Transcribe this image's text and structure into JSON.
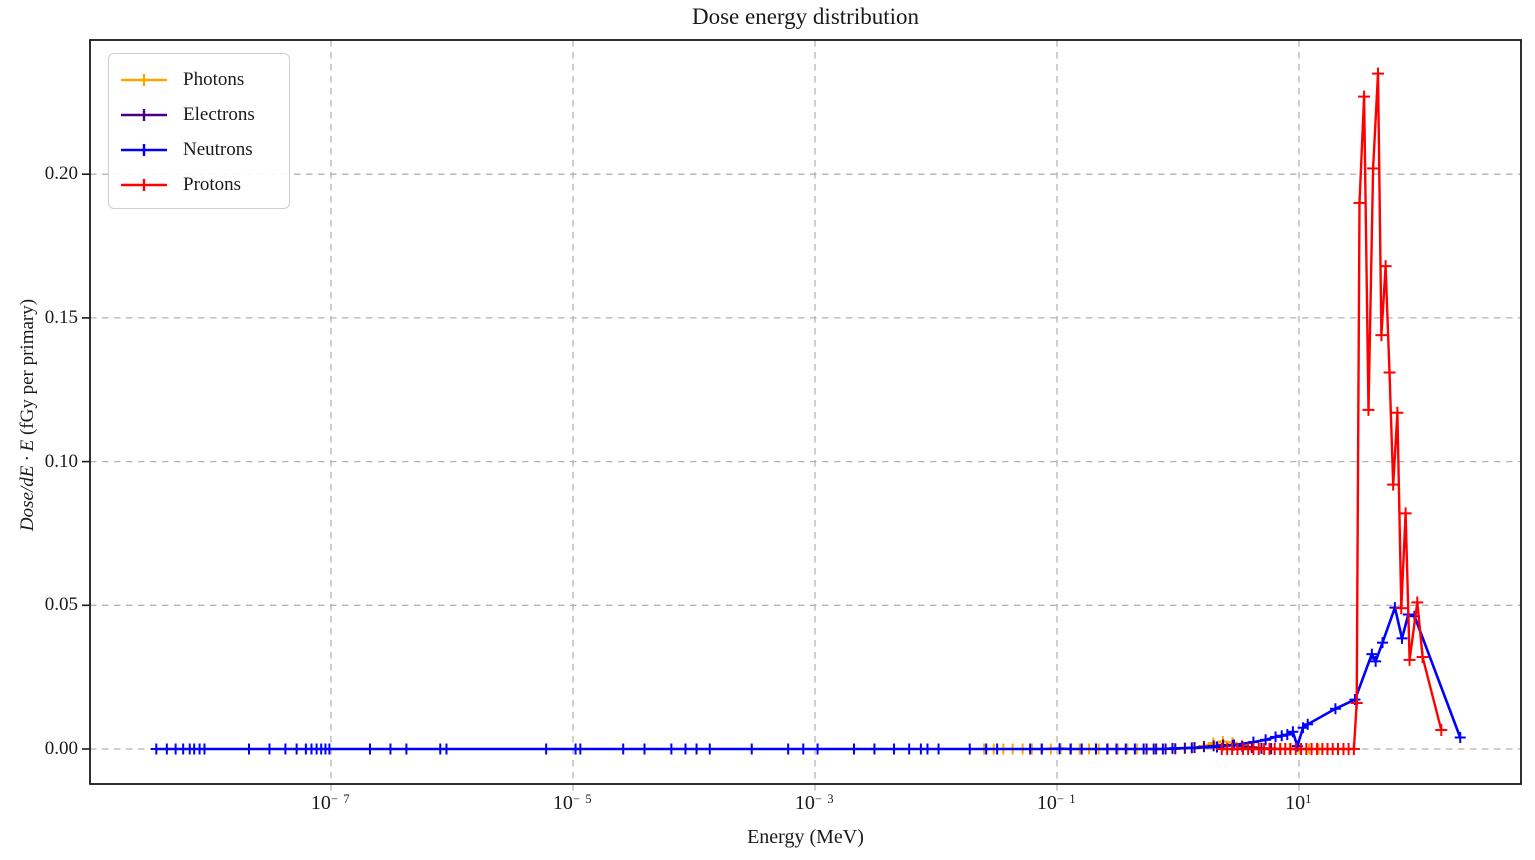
{
  "chart_data": {
    "type": "line",
    "title": "Dose energy distribution",
    "xlabel": "Energy (MeV)",
    "ylabel_math": "Dose/dE · E",
    "ylabel_unit": " (fGy per primary)",
    "x_scale": "log",
    "xlim": [
      1e-09,
      700
    ],
    "ylim": [
      -0.012,
      0.247
    ],
    "x_ticks": [
      {
        "base": "10",
        "exp": -7
      },
      {
        "base": "10",
        "exp": -5
      },
      {
        "base": "10",
        "exp": -3
      },
      {
        "base": "10",
        "exp": -1
      },
      {
        "base": "10",
        "exp": 1
      }
    ],
    "y_ticks": [
      0.0,
      0.05,
      0.1,
      0.15,
      0.2
    ],
    "grid": "dashed",
    "grid_color": "#b4b4b4",
    "legend_position": "upper-left",
    "series": [
      {
        "name": "Photons",
        "color": "#FFA500",
        "marker": "+",
        "points": [
          [
            0.025,
            0
          ],
          [
            0.03,
            0
          ],
          [
            0.036,
            0
          ],
          [
            0.043,
            0
          ],
          [
            0.052,
            0
          ],
          [
            0.062,
            0
          ],
          [
            0.074,
            0
          ],
          [
            0.089,
            0
          ],
          [
            0.107,
            0
          ],
          [
            0.128,
            0
          ],
          [
            0.154,
            0
          ],
          [
            0.184,
            0
          ],
          [
            0.221,
            0
          ],
          [
            0.265,
            0
          ],
          [
            0.318,
            0
          ],
          [
            0.381,
            0
          ],
          [
            0.457,
            0
          ],
          [
            0.548,
            0
          ],
          [
            0.658,
            0
          ],
          [
            0.789,
            0
          ],
          [
            0.946,
            0
          ],
          [
            1.14,
            0.0002
          ],
          [
            1.36,
            0.0005
          ],
          [
            1.63,
            0.001
          ],
          [
            1.96,
            0.0021
          ],
          [
            2.35,
            0.0026
          ],
          [
            2.82,
            0.0022
          ],
          [
            3.38,
            0.0013
          ],
          [
            4.06,
            0.0007
          ],
          [
            4.87,
            0.0004
          ],
          [
            5.84,
            0.0002
          ],
          [
            7.0,
            0.0001
          ],
          [
            8.4,
            0.0001
          ],
          [
            10.1,
            0
          ],
          [
            12.1,
            0
          ],
          [
            14.5,
            0
          ]
        ]
      },
      {
        "name": "Electrons",
        "color": "#4B0082",
        "marker": "+",
        "points": [
          [
            0.55,
            0
          ],
          [
            0.66,
            0
          ],
          [
            0.79,
            0
          ],
          [
            0.95,
            0.0001
          ],
          [
            1.14,
            0.0003
          ],
          [
            1.37,
            0.0005
          ],
          [
            1.64,
            0.0008
          ],
          [
            1.97,
            0.0011
          ],
          [
            2.36,
            0.0014
          ],
          [
            2.83,
            0.0013
          ],
          [
            3.4,
            0.0009
          ],
          [
            4.08,
            0.0005
          ],
          [
            4.9,
            0.0002
          ],
          [
            5.88,
            0.0001
          ]
        ]
      },
      {
        "name": "Neutrons",
        "color": "#0000FF",
        "marker": "+",
        "points": [
          [
            3.6e-09,
            0
          ],
          [
            4.4e-09,
            0
          ],
          [
            5.2e-09,
            0
          ],
          [
            6e-09,
            0
          ],
          [
            6.8e-09,
            0
          ],
          [
            7.4e-09,
            0
          ],
          [
            8.2e-09,
            0
          ],
          [
            9e-09,
            0
          ],
          [
            2.1e-08,
            0
          ],
          [
            3.1e-08,
            0
          ],
          [
            4.2e-08,
            0
          ],
          [
            5.2e-08,
            0
          ],
          [
            6.2e-08,
            0
          ],
          [
            6.9e-08,
            0
          ],
          [
            7.6e-08,
            0
          ],
          [
            8.3e-08,
            0
          ],
          [
            9e-08,
            0
          ],
          [
            9.7e-08,
            0
          ],
          [
            2.1e-07,
            0
          ],
          [
            3.1e-07,
            0
          ],
          [
            4.2e-07,
            0
          ],
          [
            8e-07,
            0
          ],
          [
            9e-07,
            0
          ],
          [
            6e-06,
            0
          ],
          [
            1.05e-05,
            0
          ],
          [
            1.15e-05,
            0
          ],
          [
            2.6e-05,
            0
          ],
          [
            3.9e-05,
            0
          ],
          [
            6.5e-05,
            0
          ],
          [
            8.5e-05,
            0
          ],
          [
            0.000105,
            0
          ],
          [
            0.000135,
            0
          ],
          [
            0.0003,
            0
          ],
          [
            0.0006,
            0
          ],
          [
            0.0008,
            0
          ],
          [
            0.00105,
            0
          ],
          [
            0.0021,
            0
          ],
          [
            0.0031,
            0
          ],
          [
            0.0045,
            0
          ],
          [
            0.006,
            0
          ],
          [
            0.0075,
            0
          ],
          [
            0.0085,
            0
          ],
          [
            0.0105,
            0
          ],
          [
            0.019,
            0
          ],
          [
            0.026,
            0
          ],
          [
            0.032,
            0
          ],
          [
            0.06,
            0
          ],
          [
            0.075,
            0
          ],
          [
            0.105,
            0.0001
          ],
          [
            0.13,
            0
          ],
          [
            0.16,
            0
          ],
          [
            0.21,
            0
          ],
          [
            0.26,
            0
          ],
          [
            0.31,
            0
          ],
          [
            0.37,
            0
          ],
          [
            0.44,
            0
          ],
          [
            0.52,
            0
          ],
          [
            0.63,
            0
          ],
          [
            0.75,
            0
          ],
          [
            0.9,
            0.0002
          ],
          [
            1.3,
            0.0004
          ],
          [
            2.1,
            0.0007
          ],
          [
            2.9,
            0.0014
          ],
          [
            4.2,
            0.0024
          ],
          [
            5.3,
            0.0032
          ],
          [
            6.4,
            0.0042
          ],
          [
            7.2,
            0.0046
          ],
          [
            8.0,
            0.005
          ],
          [
            8.9,
            0.006
          ],
          [
            9.7,
            0.001
          ],
          [
            10.8,
            0.0074
          ],
          [
            11.8,
            0.0086
          ],
          [
            20,
            0.014
          ],
          [
            29,
            0.0172
          ],
          [
            40,
            0.033
          ],
          [
            43,
            0.0305
          ],
          [
            49,
            0.037
          ],
          [
            62,
            0.0492
          ],
          [
            71,
            0.0385
          ],
          [
            80,
            0.0468
          ],
          [
            90,
            0.0462
          ],
          [
            215,
            0.004
          ]
        ]
      },
      {
        "name": "Protons",
        "color": "#FF0000",
        "marker": "+",
        "points": [
          [
            2.3,
            0
          ],
          [
            2.55,
            0
          ],
          [
            2.8,
            0
          ],
          [
            3.1,
            0
          ],
          [
            3.45,
            0
          ],
          [
            3.8,
            0
          ],
          [
            4.2,
            0
          ],
          [
            4.65,
            0
          ],
          [
            5.15,
            0
          ],
          [
            5.7,
            0
          ],
          [
            6.3,
            0
          ],
          [
            7.0,
            0
          ],
          [
            7.7,
            0
          ],
          [
            8.5,
            0
          ],
          [
            9.4,
            0
          ],
          [
            10.4,
            0
          ],
          [
            11.5,
            0
          ],
          [
            12.7,
            0
          ],
          [
            14.1,
            0
          ],
          [
            15.6,
            0
          ],
          [
            17.2,
            0
          ],
          [
            19.0,
            0
          ],
          [
            21.0,
            0
          ],
          [
            23.3,
            0
          ],
          [
            25.7,
            0
          ],
          [
            28.4,
            0
          ],
          [
            30.0,
            0.016
          ],
          [
            31.6,
            0.19
          ],
          [
            34.5,
            0.227
          ],
          [
            37.5,
            0.118
          ],
          [
            41.0,
            0.202
          ],
          [
            45.0,
            0.235
          ],
          [
            48.0,
            0.144
          ],
          [
            52.0,
            0.168
          ],
          [
            56.0,
            0.131
          ],
          [
            60.0,
            0.092
          ],
          [
            65.0,
            0.117
          ],
          [
            70.0,
            0.049
          ],
          [
            76.0,
            0.082
          ],
          [
            82.0,
            0.031
          ],
          [
            95.0,
            0.051
          ],
          [
            105.0,
            0.032
          ],
          [
            150.0,
            0.0066
          ]
        ]
      }
    ]
  }
}
